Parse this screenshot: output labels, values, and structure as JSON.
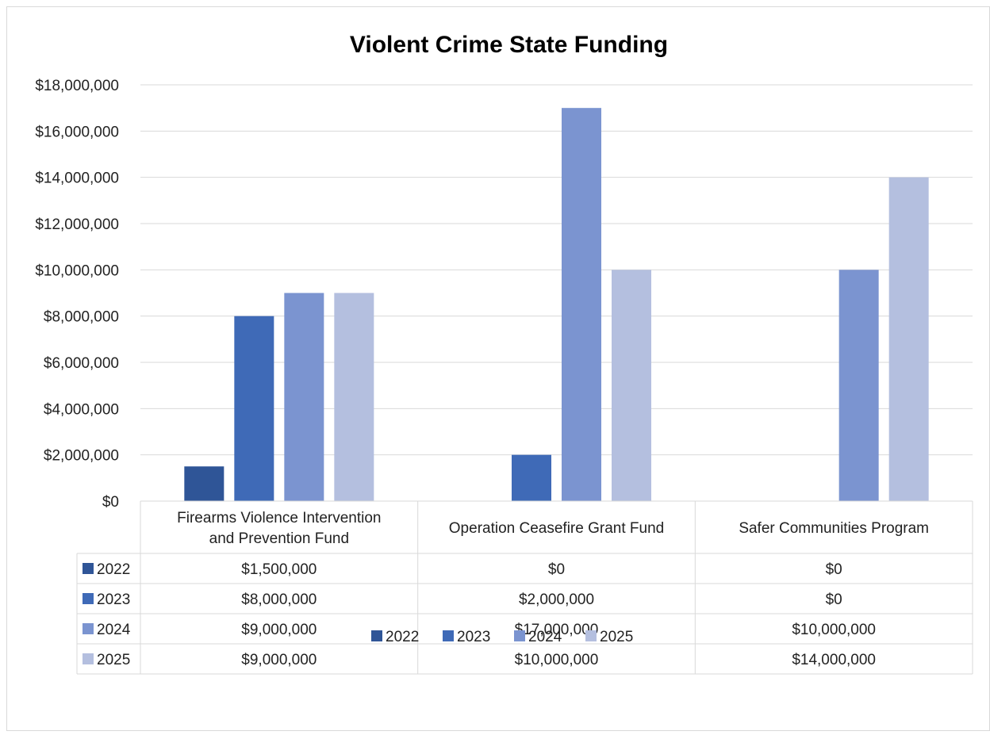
{
  "chart_data": {
    "type": "bar",
    "title": "Violent Crime State Funding",
    "categories": [
      [
        "Firearms Violence Intervention",
        "and Prevention Fund"
      ],
      [
        "Operation Ceasefire Grant Fund"
      ],
      [
        "Safer Communities Program"
      ]
    ],
    "series": [
      {
        "name": "2022",
        "color": "#2f5597",
        "values": [
          1500000,
          0,
          0
        ],
        "labels": [
          "$1,500,000",
          "$0",
          "$0"
        ]
      },
      {
        "name": "2023",
        "color": "#3f6ab7",
        "values": [
          8000000,
          2000000,
          0
        ],
        "labels": [
          "$8,000,000",
          "$2,000,000",
          "$0"
        ]
      },
      {
        "name": "2024",
        "color": "#7b94d0",
        "values": [
          9000000,
          17000000,
          10000000
        ],
        "labels": [
          "$9,000,000",
          "$17,000,000",
          "$10,000,000"
        ]
      },
      {
        "name": "2025",
        "color": "#b4bfdf",
        "values": [
          9000000,
          10000000,
          14000000
        ],
        "labels": [
          "$9,000,000",
          "$10,000,000",
          "$14,000,000"
        ]
      }
    ],
    "ylim": [
      0,
      18000000
    ],
    "yticks": [
      0,
      2000000,
      4000000,
      6000000,
      8000000,
      10000000,
      12000000,
      14000000,
      16000000,
      18000000
    ],
    "ytick_labels": [
      "$0",
      "$2,000,000",
      "$4,000,000",
      "$6,000,000",
      "$8,000,000",
      "$10,000,000",
      "$12,000,000",
      "$14,000,000",
      "$16,000,000",
      "$18,000,000"
    ],
    "grid": true,
    "data_table": true,
    "legend_position": "bottom"
  }
}
